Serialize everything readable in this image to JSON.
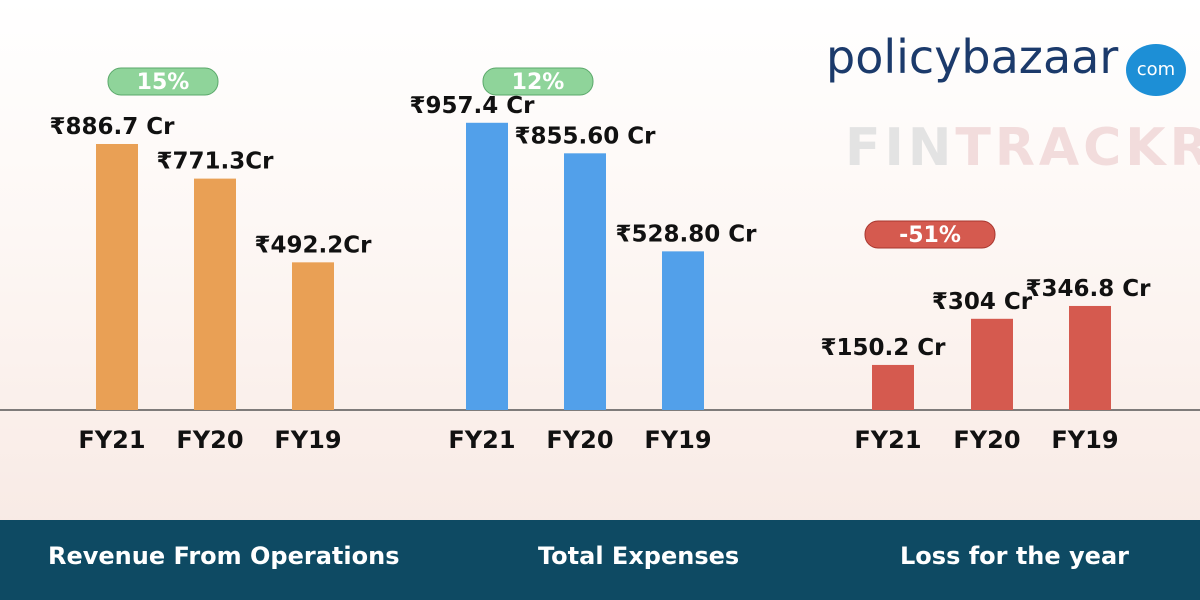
{
  "logo": {
    "part1": "policy",
    "part2": "bazaar",
    "badge": "com"
  },
  "watermark": {
    "part1": "FIN",
    "part2": "TRACKR"
  },
  "colors": {
    "revenue": "#e9a055",
    "expenses": "#52a0ea",
    "loss": "#d55a4f",
    "footer": "#0e4a63",
    "pill_green": "#8fd49a",
    "pill_red": "#d55a4f"
  },
  "chart_data": [
    {
      "type": "bar",
      "title": "Revenue From Operations",
      "categories": [
        "FY21",
        "FY20",
        "FY19"
      ],
      "values": [
        886.7,
        771.3,
        492.2
      ],
      "value_labels": [
        "₹886.7 Cr",
        "₹771.3Cr",
        "₹492.2Cr"
      ],
      "change_badge": "15%",
      "badge_style": "green"
    },
    {
      "type": "bar",
      "title": "Total Expenses",
      "categories": [
        "FY21",
        "FY20",
        "FY19"
      ],
      "values": [
        957.4,
        855.6,
        528.8
      ],
      "value_labels": [
        "₹957.4 Cr",
        "₹855.60 Cr",
        "₹528.80 Cr"
      ],
      "change_badge": "12%",
      "badge_style": "green"
    },
    {
      "type": "bar",
      "title": "Loss for the year",
      "categories": [
        "FY21",
        "FY20",
        "FY19"
      ],
      "values": [
        150.2,
        304,
        346.8
      ],
      "value_labels": [
        "₹150.2 Cr",
        "₹304 Cr",
        "₹346.8 Cr"
      ],
      "change_badge": "-51%",
      "badge_style": "red"
    }
  ]
}
